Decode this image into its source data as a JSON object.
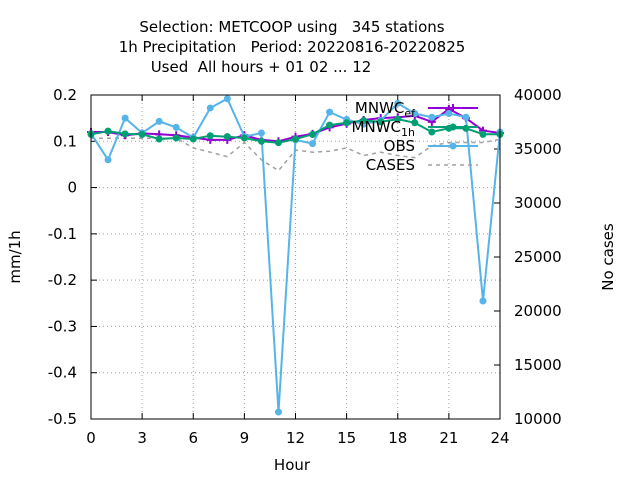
{
  "chart_data": {
    "type": "line",
    "title_lines": [
      "Selection: METCOOP using   345 stations",
      "1h Precipitation   Period: 20220816-20220825",
      "Used  All hours + 01 02 ... 12"
    ],
    "xlabel": "Hour",
    "ylabel": "mm/1h",
    "y2label": "No cases",
    "xlim": [
      0,
      24
    ],
    "ylim": [
      -0.5,
      0.2
    ],
    "y2lim": [
      10000,
      40000
    ],
    "x_ticks": [
      0,
      3,
      6,
      9,
      12,
      15,
      18,
      21,
      24
    ],
    "y_ticks": [
      -0.5,
      -0.4,
      -0.3,
      -0.2,
      -0.1,
      0,
      0.1,
      0.2
    ],
    "y2_ticks": [
      10000,
      15000,
      20000,
      25000,
      30000,
      35000,
      40000
    ],
    "grid": true,
    "legend_position": "top-right",
    "x": [
      0,
      1,
      2,
      3,
      4,
      5,
      6,
      7,
      8,
      9,
      10,
      11,
      12,
      13,
      14,
      15,
      16,
      17,
      18,
      19,
      20,
      21,
      22,
      23,
      24
    ],
    "series": [
      {
        "name": "MNWC_ef",
        "legend_main": "MNWC",
        "legend_sub": "ef",
        "color": "#9400d3",
        "marker": "plus",
        "axis": "y1",
        "values": [
          0.12,
          0.12,
          0.113,
          0.117,
          0.115,
          0.113,
          0.108,
          0.103,
          0.103,
          0.113,
          0.103,
          0.1,
          0.11,
          0.116,
          0.13,
          0.138,
          0.146,
          0.15,
          0.152,
          0.155,
          0.142,
          0.17,
          0.15,
          0.123,
          0.118
        ]
      },
      {
        "name": "MNWC_1h",
        "legend_main": "MNWC",
        "legend_sub": "1h",
        "color": "#009e73",
        "marker": "circle",
        "axis": "y1",
        "values": [
          0.115,
          0.122,
          0.116,
          0.115,
          0.105,
          0.107,
          0.105,
          0.112,
          0.11,
          0.107,
          0.1,
          0.097,
          0.105,
          0.115,
          0.135,
          0.14,
          0.145,
          0.142,
          0.148,
          0.14,
          0.12,
          0.128,
          0.128,
          0.115,
          0.115
        ]
      },
      {
        "name": "OBS",
        "color": "#56b4e9",
        "marker": "circle",
        "axis": "y1",
        "values": [
          0.117,
          0.06,
          0.15,
          0.118,
          0.143,
          0.13,
          0.108,
          0.172,
          0.192,
          0.11,
          0.118,
          -0.485,
          0.103,
          0.095,
          0.163,
          0.147,
          0.137,
          0.145,
          0.182,
          0.16,
          0.152,
          0.16,
          0.152,
          -0.245,
          0.12
        ]
      },
      {
        "name": "CASES",
        "color": "#a0a0a0",
        "dashed": true,
        "axis": "y2",
        "values": [
          36000,
          36000,
          36000,
          36000,
          36000,
          36000,
          35100,
          34700,
          34300,
          35600,
          34000,
          33000,
          34900,
          34700,
          34800,
          35100,
          34400,
          34700,
          34400,
          34200,
          35300,
          35600,
          35600,
          35600,
          35900
        ]
      }
    ]
  }
}
